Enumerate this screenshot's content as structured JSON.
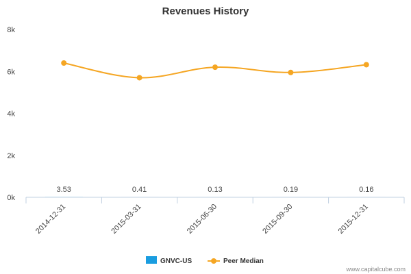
{
  "chart_data": {
    "type": "line",
    "title": "Revenues History",
    "categories": [
      "2014-12-31",
      "2015-03-31",
      "2015-06-30",
      "2015-09-30",
      "2015-12-31"
    ],
    "yticks": [
      "0k",
      "2k",
      "4k",
      "6k",
      "8k"
    ],
    "ytick_values": [
      0,
      2000,
      4000,
      6000,
      8000
    ],
    "ylim": [
      0,
      8000
    ],
    "series": [
      {
        "name": "GNVC-US",
        "type": "bar",
        "color": "#1a9de0",
        "values": [
          3.53,
          0.41,
          0.13,
          0.19,
          0.16
        ],
        "labels": [
          "3.53",
          "0.41",
          "0.13",
          "0.19",
          "0.16"
        ]
      },
      {
        "name": "Peer Median",
        "type": "line",
        "color": "#f5a623",
        "values": [
          6400,
          5700,
          6200,
          5950,
          6320
        ]
      }
    ],
    "legend": [
      "GNVC-US",
      "Peer Median"
    ],
    "legend_position": "bottom-center",
    "credit": "www.capitalcube.com"
  }
}
